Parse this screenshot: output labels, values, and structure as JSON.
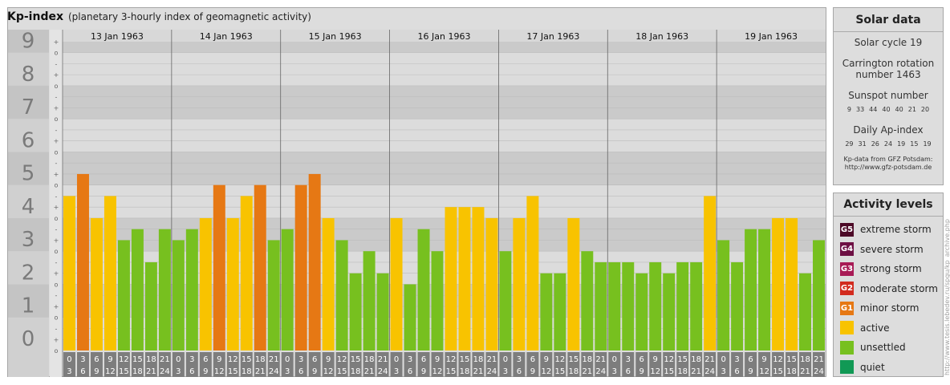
{
  "header": {
    "title": "Kp-index",
    "subtitle": "(planetary 3-hourly index of geomagnetic activity)"
  },
  "chart_data": {
    "type": "bar",
    "title": "Kp-index",
    "subtitle": "(planetary 3-hourly index of geomagnetic activity)",
    "days": [
      "13 Jan 1963",
      "14 Jan 1963",
      "15 Jan 1963",
      "16 Jan 1963",
      "17 Jan 1963",
      "18 Jan 1963",
      "19 Jan 1963"
    ],
    "interval_labels_top": [
      "0",
      "3",
      "6",
      "9",
      "12",
      "15",
      "18",
      "21"
    ],
    "interval_labels_bottom": [
      "3",
      "6",
      "9",
      "12",
      "15",
      "18",
      "21",
      "24"
    ],
    "y_ticks": [
      "0",
      "1",
      "2",
      "3",
      "4",
      "5",
      "6",
      "7",
      "8",
      "9"
    ],
    "sublevel_marks": [
      "+",
      "o",
      "-"
    ],
    "ylim": [
      0,
      9.33
    ],
    "series": [
      {
        "values": [
          4.667,
          5.333,
          4.0,
          4.667,
          3.333,
          3.667,
          2.667,
          3.667,
          3.333,
          3.667,
          4.0,
          5.0,
          4.0,
          4.667,
          5.0,
          3.333,
          3.667,
          5.0,
          5.333,
          4.0,
          3.333,
          2.333,
          3.0,
          2.333,
          4.0,
          2.0,
          3.667,
          3.0,
          4.333,
          4.333,
          4.333,
          4.0,
          3.0,
          4.0,
          4.667,
          2.333,
          2.333,
          4.0,
          3.0,
          2.667,
          2.667,
          2.667,
          2.333,
          2.667,
          2.333,
          2.667,
          2.667,
          4.667,
          3.333,
          2.667,
          3.667,
          3.667,
          4.0,
          4.0,
          2.333,
          3.333
        ]
      }
    ],
    "colors": {
      "quiet": "#119955",
      "unsettled": "#77c01f",
      "active": "#f8c300",
      "minor_storm": "#e67814",
      "moderate_storm": "#d22b1e",
      "strong_storm": "#a81a55",
      "severe_storm": "#6d0f43",
      "extreme_storm": "#4d0a27"
    },
    "grid": true,
    "legend": "right"
  },
  "solar": {
    "title": "Solar data",
    "cycle": "Solar cycle 19",
    "carrington_line1": "Carrington rotation",
    "carrington_line2": "number 1463",
    "sunspot_title": "Sunspot number",
    "sunspot_values": [
      "9",
      "33",
      "44",
      "40",
      "40",
      "21",
      "20"
    ],
    "ap_title": "Daily Ap-index",
    "ap_values": [
      "29",
      "31",
      "26",
      "24",
      "19",
      "15",
      "19"
    ],
    "source_line1": "Kp-data from GFZ Potsdam:",
    "source_line2": "http://www.gfz-potsdam.de"
  },
  "activity": {
    "title": "Activity levels",
    "levels": [
      {
        "code": "G5",
        "label": "extreme storm",
        "color": "#4d0a27"
      },
      {
        "code": "G4",
        "label": "severe storm",
        "color": "#6d0f43"
      },
      {
        "code": "G3",
        "label": "strong storm",
        "color": "#a81a55"
      },
      {
        "code": "G2",
        "label": "moderate storm",
        "color": "#d22b1e"
      },
      {
        "code": "G1",
        "label": "minor storm",
        "color": "#e67814"
      },
      {
        "code": "",
        "label": "active",
        "color": "#f8c300"
      },
      {
        "code": "",
        "label": "unsettled",
        "color": "#77c01f"
      },
      {
        "code": "",
        "label": "quiet",
        "color": "#119955"
      }
    ]
  },
  "credit": "http://www.tesis.lebedev.ru/spgu/kp_archive.php"
}
